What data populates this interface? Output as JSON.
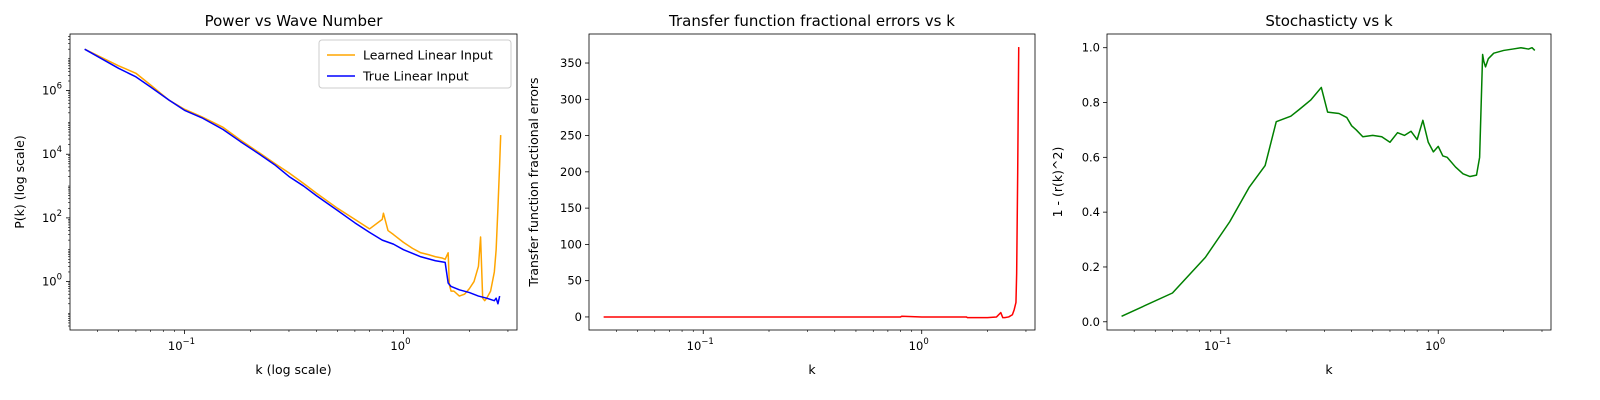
{
  "chart_data": [
    {
      "type": "line",
      "title": "Power vs Wave Number",
      "xlabel": "k (log scale)",
      "ylabel": "P(k) (log scale)",
      "xscale": "log",
      "yscale": "log",
      "xlim": [
        0.03,
        3.3
      ],
      "ylim": [
        0.03,
        60000000
      ],
      "xticks": [
        0.1,
        1
      ],
      "xtick_labels": [
        "10",
        "10"
      ],
      "xtick_exps": [
        "−1",
        "0"
      ],
      "yticks": [
        1,
        100,
        10000,
        1000000
      ],
      "ytick_labels": [
        "10",
        "10",
        "10",
        "10"
      ],
      "ytick_exps": [
        "0",
        "2",
        "4",
        "6"
      ],
      "grid": false,
      "legend": "top-right",
      "series": [
        {
          "name": "Learned Linear Input",
          "color": "#ffa500",
          "x": [
            0.035,
            0.05,
            0.06,
            0.07,
            0.085,
            0.1,
            0.12,
            0.15,
            0.18,
            0.22,
            0.26,
            0.3,
            0.35,
            0.4,
            0.5,
            0.6,
            0.7,
            0.8,
            0.81,
            0.85,
            0.9,
            1.0,
            1.1,
            1.2,
            1.3,
            1.4,
            1.5,
            1.55,
            1.6,
            1.62,
            1.65,
            1.7,
            1.8,
            1.9,
            2.0,
            2.1,
            2.2,
            2.25,
            2.3,
            2.35,
            2.4,
            2.5,
            2.6,
            2.65,
            2.7,
            2.75,
            2.78
          ],
          "y": [
            20000000,
            6000000,
            3500000,
            1500000,
            500000,
            260000,
            150000,
            70000,
            28000,
            11000,
            5000,
            2600,
            1200,
            600,
            200,
            90,
            45,
            90,
            140,
            40,
            30,
            17,
            11,
            8,
            7,
            6,
            5.5,
            5,
            8,
            0.8,
            0.5,
            0.5,
            0.35,
            0.4,
            0.6,
            1.0,
            3,
            25,
            0.3,
            0.25,
            0.3,
            0.5,
            2,
            10,
            200,
            5000,
            40000
          ]
        },
        {
          "name": "True Linear Input",
          "color": "#0000ff",
          "x": [
            0.035,
            0.05,
            0.06,
            0.07,
            0.085,
            0.1,
            0.12,
            0.15,
            0.18,
            0.22,
            0.26,
            0.3,
            0.35,
            0.4,
            0.5,
            0.6,
            0.7,
            0.8,
            0.9,
            1.0,
            1.2,
            1.4,
            1.55,
            1.6,
            1.65,
            1.8,
            2.0,
            2.2,
            2.4,
            2.6,
            2.65,
            2.7,
            2.75
          ],
          "y": [
            20000000,
            5000000,
            2700000,
            1300000,
            500000,
            240000,
            140000,
            60000,
            25000,
            10000,
            4500,
            2000,
            1000,
            500,
            170,
            70,
            35,
            20,
            15,
            10,
            6,
            4.5,
            4,
            0.9,
            0.7,
            0.55,
            0.45,
            0.35,
            0.3,
            0.25,
            0.3,
            0.2,
            0.35
          ]
        }
      ]
    },
    {
      "type": "line",
      "title": "Transfer function fractional errors vs k",
      "xlabel": "k",
      "ylabel": "Transfer function fractional errors",
      "xscale": "log",
      "yscale": "linear",
      "xlim": [
        0.03,
        3.3
      ],
      "ylim": [
        -18,
        390
      ],
      "xticks": [
        0.1,
        1
      ],
      "xtick_labels": [
        "10",
        "10"
      ],
      "xtick_exps": [
        "−1",
        "0"
      ],
      "yticks": [
        0,
        50,
        100,
        150,
        200,
        250,
        300,
        350
      ],
      "ytick_labels": [
        "0",
        "50",
        "100",
        "150",
        "200",
        "250",
        "300",
        "350"
      ],
      "grid": false,
      "series": [
        {
          "color": "#ff0000",
          "x": [
            0.035,
            0.1,
            0.3,
            0.8,
            0.81,
            1.0,
            1.6,
            1.62,
            2.0,
            2.2,
            2.3,
            2.35,
            2.4,
            2.5,
            2.6,
            2.65,
            2.7,
            2.72,
            2.75,
            2.78
          ],
          "y": [
            0,
            0,
            0,
            0,
            1,
            0,
            0,
            -1,
            -1,
            0,
            6,
            -1,
            -1,
            0,
            3,
            10,
            20,
            60,
            200,
            372
          ]
        }
      ]
    },
    {
      "type": "line",
      "title": "Stochasticty vs k",
      "xlabel": "k",
      "ylabel": "1 - (r(k)^2)",
      "xscale": "log",
      "yscale": "linear",
      "xlim": [
        0.03,
        3.3
      ],
      "ylim": [
        -0.03,
        1.05
      ],
      "xticks": [
        0.1,
        1
      ],
      "xtick_labels": [
        "10",
        "10"
      ],
      "xtick_exps": [
        "−1",
        "0"
      ],
      "yticks": [
        0.0,
        0.2,
        0.4,
        0.6,
        0.8,
        1.0
      ],
      "ytick_labels": [
        "0.0",
        "0.2",
        "0.4",
        "0.6",
        "0.8",
        "1.0"
      ],
      "grid": false,
      "series": [
        {
          "color": "#008000",
          "x": [
            0.035,
            0.06,
            0.085,
            0.11,
            0.135,
            0.16,
            0.18,
            0.21,
            0.23,
            0.26,
            0.29,
            0.31,
            0.35,
            0.38,
            0.4,
            0.42,
            0.45,
            0.5,
            0.55,
            0.6,
            0.65,
            0.7,
            0.75,
            0.8,
            0.85,
            0.9,
            0.95,
            1.0,
            1.05,
            1.1,
            1.2,
            1.3,
            1.4,
            1.5,
            1.55,
            1.6,
            1.62,
            1.65,
            1.7,
            1.8,
            2.0,
            2.2,
            2.4,
            2.6,
            2.7,
            2.78
          ],
          "y": [
            0.02,
            0.105,
            0.235,
            0.365,
            0.49,
            0.57,
            0.73,
            0.75,
            0.775,
            0.81,
            0.855,
            0.765,
            0.76,
            0.745,
            0.715,
            0.7,
            0.675,
            0.68,
            0.675,
            0.655,
            0.69,
            0.68,
            0.695,
            0.665,
            0.735,
            0.655,
            0.62,
            0.64,
            0.605,
            0.6,
            0.565,
            0.54,
            0.53,
            0.535,
            0.6,
            0.975,
            0.95,
            0.93,
            0.96,
            0.98,
            0.99,
            0.995,
            1.0,
            0.995,
            1.0,
            0.99
          ]
        }
      ]
    }
  ]
}
